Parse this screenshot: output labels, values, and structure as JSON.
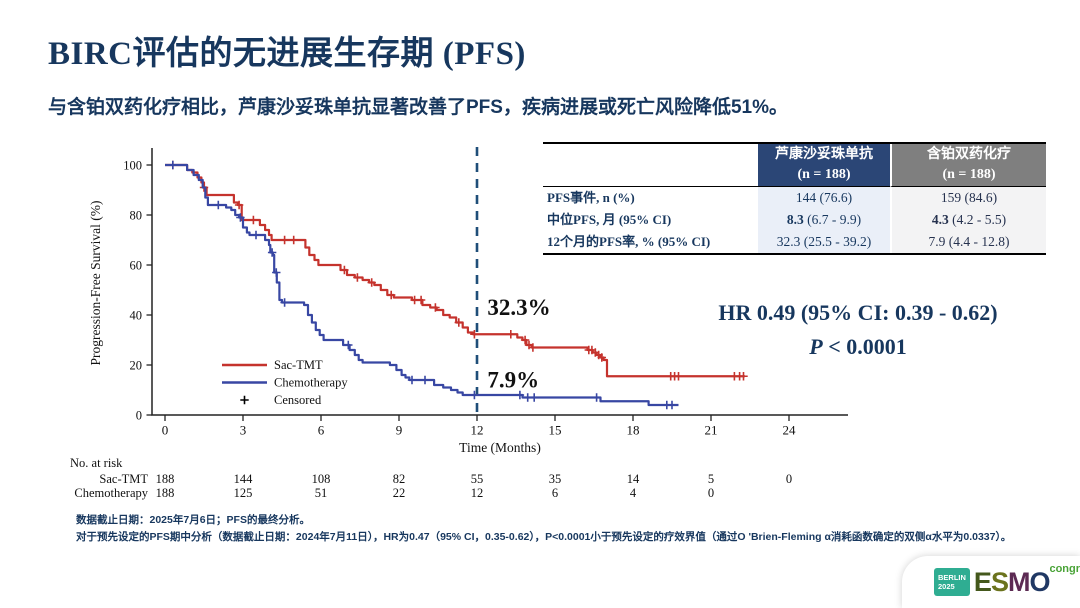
{
  "page": {
    "title": "BIRC评估的无进展生存期 (PFS)",
    "subtitle": "与含铂双药化疗相比，芦康沙妥珠单抗显著改善了PFS，疾病进展或死亡风险降低51%。"
  },
  "summary_table": {
    "columns": [
      {
        "title": "芦康沙妥珠单抗",
        "n": "(n = 188)"
      },
      {
        "title": "含铂双药化疗",
        "n": "(n = 188)"
      }
    ],
    "rows": [
      {
        "label": "PFS事件, n (%)",
        "v1_bold": "",
        "v1": "144 (76.6)",
        "v2_bold": "",
        "v2": "159 (84.6)"
      },
      {
        "label": "中位PFS, 月 (95% CI)",
        "v1_bold": "8.3",
        "v1": " (6.7 - 9.9)",
        "v2_bold": "4.3",
        "v2": " (4.2 - 5.5)"
      },
      {
        "label": "12个月的PFS率, % (95% CI)",
        "v1_bold": "",
        "v1": "32.3 (25.5 - 39.2)",
        "v2_bold": "",
        "v2": "7.9 (4.4 - 12.8)"
      }
    ]
  },
  "hr_stats": {
    "line1": "HR 0.49 (95% CI: 0.39 - 0.62)",
    "p_label": "P",
    "p_value": " < 0.0001"
  },
  "chart_data": {
    "type": "line",
    "subtype": "kaplan-meier",
    "xlabel": "Time (Months)",
    "ylabel": "Progression-Free Survival (%)",
    "xlim": [
      0,
      24
    ],
    "ylim": [
      0,
      100
    ],
    "xticks": [
      0,
      3,
      6,
      9,
      12,
      15,
      18,
      21,
      24
    ],
    "yticks": [
      0,
      20,
      40,
      60,
      80,
      100
    ],
    "reference_line_x": 12,
    "reference_line_color": "#1F4E79",
    "annotations": [
      {
        "text": "32.3%",
        "color": "#C5332D",
        "x": 12.4,
        "y": 40
      },
      {
        "text": "7.9%",
        "color": "#17375E",
        "x": 12.4,
        "y": 11
      }
    ],
    "series": [
      {
        "name": "Sac-TMT",
        "color": "#C5332D",
        "steps": [
          [
            0,
            100
          ],
          [
            0.85,
            98
          ],
          [
            1.05,
            97
          ],
          [
            1.25,
            95
          ],
          [
            1.4,
            93
          ],
          [
            1.5,
            91
          ],
          [
            1.6,
            88
          ],
          [
            2.65,
            85
          ],
          [
            2.8,
            84
          ],
          [
            2.95,
            78
          ],
          [
            3.65,
            76
          ],
          [
            3.85,
            74
          ],
          [
            4.0,
            72
          ],
          [
            4.1,
            70
          ],
          [
            5.4,
            67
          ],
          [
            5.55,
            64
          ],
          [
            5.75,
            62
          ],
          [
            5.9,
            60
          ],
          [
            6.75,
            58
          ],
          [
            7.0,
            56
          ],
          [
            7.3,
            55
          ],
          [
            7.6,
            54
          ],
          [
            7.85,
            53
          ],
          [
            8.05,
            52
          ],
          [
            8.3,
            50
          ],
          [
            8.55,
            48
          ],
          [
            8.8,
            47
          ],
          [
            9.5,
            46
          ],
          [
            9.9,
            44
          ],
          [
            10.2,
            43
          ],
          [
            10.45,
            42
          ],
          [
            10.7,
            40
          ],
          [
            10.95,
            39
          ],
          [
            11.2,
            37
          ],
          [
            11.45,
            35
          ],
          [
            11.65,
            33
          ],
          [
            11.85,
            32.3
          ],
          [
            13.55,
            31
          ],
          [
            13.75,
            30
          ],
          [
            13.9,
            28
          ],
          [
            14.1,
            27
          ],
          [
            16.25,
            26
          ],
          [
            16.45,
            25
          ],
          [
            16.6,
            24
          ],
          [
            16.75,
            23
          ],
          [
            16.87,
            22
          ],
          [
            17.0,
            15.5
          ],
          [
            22.3,
            15.5
          ]
        ],
        "censors": [
          0.3,
          1.5,
          2.85,
          3.4,
          4.6,
          4.95,
          6.9,
          7.4,
          7.95,
          8.7,
          9.6,
          9.85,
          10.4,
          11.3,
          11.9,
          13.3,
          13.85,
          14.0,
          14.15,
          16.3,
          16.42,
          16.55,
          16.68,
          16.8,
          19.45,
          19.6,
          19.75,
          21.9,
          22.1,
          22.25
        ]
      },
      {
        "name": "Chemotherapy",
        "color": "#3847A3",
        "steps": [
          [
            0,
            100
          ],
          [
            0.85,
            98
          ],
          [
            1.1,
            96
          ],
          [
            1.3,
            94
          ],
          [
            1.45,
            91
          ],
          [
            1.55,
            87
          ],
          [
            1.65,
            84
          ],
          [
            2.35,
            83
          ],
          [
            2.55,
            82
          ],
          [
            2.7,
            80
          ],
          [
            2.85,
            79
          ],
          [
            3.0,
            75
          ],
          [
            3.15,
            73
          ],
          [
            3.25,
            72
          ],
          [
            3.85,
            70
          ],
          [
            4.0,
            68
          ],
          [
            4.05,
            65
          ],
          [
            4.15,
            64
          ],
          [
            4.2,
            57
          ],
          [
            4.3,
            53
          ],
          [
            4.4,
            46
          ],
          [
            4.5,
            45
          ],
          [
            5.35,
            44
          ],
          [
            5.5,
            40
          ],
          [
            5.65,
            37
          ],
          [
            5.8,
            34
          ],
          [
            5.95,
            32
          ],
          [
            6.1,
            30
          ],
          [
            6.85,
            28
          ],
          [
            7.1,
            26
          ],
          [
            7.3,
            24
          ],
          [
            7.45,
            22
          ],
          [
            7.6,
            21
          ],
          [
            8.65,
            20
          ],
          [
            8.9,
            18
          ],
          [
            9.1,
            16
          ],
          [
            9.25,
            15
          ],
          [
            9.4,
            14
          ],
          [
            10.35,
            12
          ],
          [
            10.7,
            11
          ],
          [
            11.0,
            10
          ],
          [
            11.25,
            9
          ],
          [
            11.45,
            8
          ],
          [
            13.75,
            7
          ],
          [
            16.75,
            5.5
          ],
          [
            18.6,
            4
          ],
          [
            19.75,
            4
          ]
        ],
        "censors": [
          0.3,
          2.05,
          2.9,
          3.5,
          4.12,
          4.28,
          4.6,
          7.05,
          9.5,
          10.0,
          11.9,
          13.65,
          13.95,
          14.2,
          16.6,
          19.3,
          19.5
        ]
      }
    ],
    "legend": [
      {
        "label": "Sac-TMT",
        "type": "line",
        "color": "#C5332D"
      },
      {
        "label": "Chemotherapy",
        "type": "line",
        "color": "#3847A3"
      },
      {
        "label": "Censored",
        "type": "plus",
        "color": "#000000"
      }
    ],
    "at_risk": {
      "title": "No. at risk",
      "times": [
        0,
        3,
        6,
        9,
        12,
        15,
        18,
        21,
        24
      ],
      "rows": [
        {
          "label": "Sac-TMT",
          "color": "#C5332D",
          "values": [
            "188",
            "144",
            "108",
            "82",
            "55",
            "35",
            "14",
            "5",
            "0"
          ]
        },
        {
          "label": "Chemotherapy",
          "color": "#3847A3",
          "values": [
            "188",
            "125",
            "51",
            "22",
            "12",
            "6",
            "4",
            "0"
          ]
        }
      ]
    }
  },
  "footnotes": {
    "line1": "数据截止日期：2025年7月6日；PFS的最终分析。",
    "line2": "对于预先设定的PFS期中分析（数据截止日期：2024年7月11日），HR为0.47（95% CI，0.35-0.62），P<0.0001小于预先设定的疗效界值（通过O 'Brien-Fleming α消耗函数确定的双侧α水平为0.0337）。"
  },
  "logo": {
    "badge_line1": "BERLIN",
    "badge_line2": "2025",
    "letters": [
      "E",
      "S",
      "M",
      "O"
    ],
    "congress": "congress",
    "badge_color": "#2FAD92",
    "congress_color": "#49A337"
  }
}
